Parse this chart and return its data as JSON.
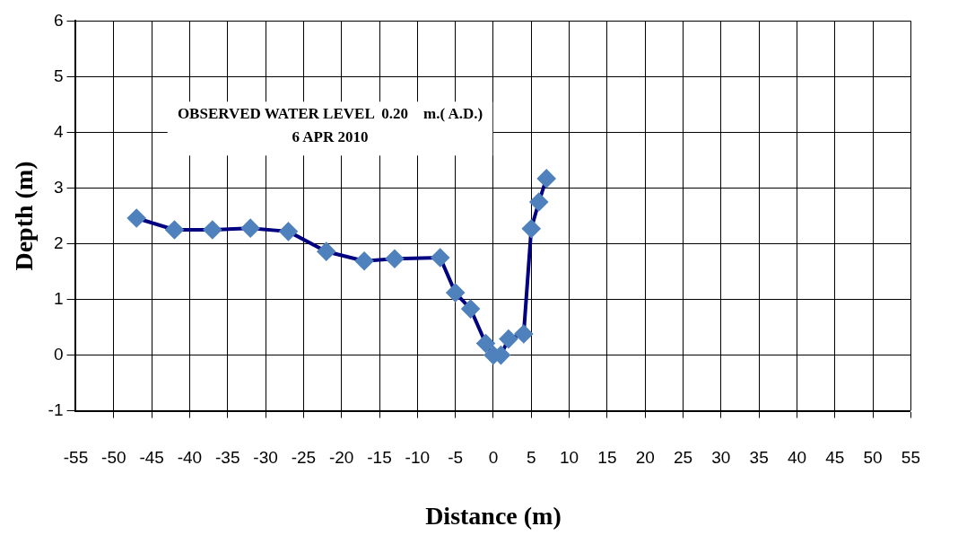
{
  "chart_data": {
    "type": "line",
    "title": "OBSERVED WATER LEVEL  0.20    m.( A.D.)",
    "subtitle": "6 APR 2010",
    "xlabel": "Distance (m)",
    "ylabel": "Depth (m)",
    "x": [
      -47,
      -42,
      -37,
      -32,
      -27,
      -22,
      -17,
      -13,
      -7,
      -5,
      -3,
      -1,
      0,
      1,
      2,
      4,
      5,
      6,
      7
    ],
    "series": [
      {
        "color": "#000080",
        "values": [
          2.46,
          2.25,
          2.25,
          2.28,
          2.22,
          1.86,
          1.69,
          1.73,
          1.75,
          1.12,
          0.83,
          0.21,
          0,
          0,
          0.29,
          0.38,
          2.27,
          2.75,
          3.17
        ]
      }
    ],
    "marker": "diamond",
    "line_style": "solid",
    "grid": true,
    "legend": false,
    "xlim": [
      -55,
      55
    ],
    "xticks": [
      -55,
      -50,
      -45,
      -40,
      -35,
      -30,
      -25,
      -20,
      -15,
      -10,
      -5,
      0,
      5,
      10,
      15,
      20,
      25,
      30,
      35,
      40,
      45,
      50,
      55
    ],
    "ylim": [
      -1,
      6
    ],
    "yticks": [
      -1,
      0,
      1,
      2,
      3,
      4,
      5,
      6
    ]
  }
}
